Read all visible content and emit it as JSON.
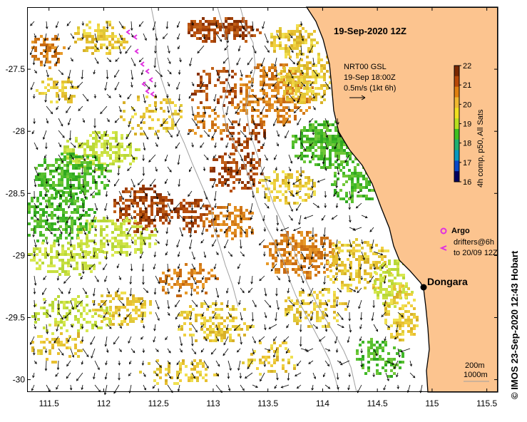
{
  "title": "19-Sep-2020 12Z",
  "product": {
    "name": "NRT00 GSL",
    "time": "19-Sep 18:00Z",
    "scale": "0.5m/s (1kt 6h)"
  },
  "colorbar": {
    "label": "4h comp, p50, All Sats",
    "ticks": [
      "22",
      "21",
      "20",
      "19",
      "18",
      "17",
      "16"
    ],
    "min": 16,
    "max": 22
  },
  "legend": {
    "argo": "Argo",
    "drifters_line1": "drifters@6h",
    "drifters_line2": "to 20/09 12Z"
  },
  "place": "Dongara",
  "isobaths": {
    "line1": "200m",
    "line2": "1000m"
  },
  "credit": "© IMOS 23-Sep-2020 12:43 Hobart",
  "axes": {
    "x_ticks": [
      "111.5",
      "112",
      "112.5",
      "113",
      "113.5",
      "114",
      "114.5",
      "115",
      "115.5"
    ],
    "y_ticks": [
      "-27.5",
      "-28",
      "-28.5",
      "-29",
      "-29.5",
      "-30"
    ],
    "xlim": [
      111.3,
      115.6
    ],
    "ylim": [
      -30.1,
      -27.0
    ]
  },
  "colors": {
    "land": "#fcc48f",
    "coast": "#000000",
    "isobath": "#aaaaaa"
  }
}
